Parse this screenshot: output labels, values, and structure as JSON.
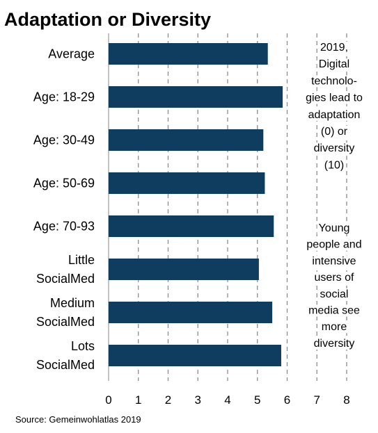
{
  "chart_data": {
    "type": "bar",
    "orientation": "horizontal",
    "title": "Adaptation or Diversity",
    "categories": [
      [
        "Average"
      ],
      [
        "Age: 18-29"
      ],
      [
        "Age: 30-49"
      ],
      [
        "Age: 50-69"
      ],
      [
        "Age: 70-93"
      ],
      [
        "Little",
        "SocialMed"
      ],
      [
        "Medium",
        "SocialMed"
      ],
      [
        "Lots",
        "SocialMed"
      ]
    ],
    "values": [
      5.35,
      5.85,
      5.2,
      5.25,
      5.55,
      5.05,
      5.5,
      5.8
    ],
    "xlim": [
      0,
      8
    ],
    "xticks": [
      "0",
      "1",
      "2",
      "3",
      "4",
      "5",
      "6",
      "7",
      "8"
    ],
    "grid": "vertical dashed",
    "bar_color": "#0e3d5f",
    "annotations": {
      "top": [
        "2019,",
        "Digital",
        "technolo-",
        "gies lead to",
        "adaptation",
        "(0) or",
        "diversity",
        "(10)"
      ],
      "bottom": [
        "Young",
        "people and",
        "intensive",
        "users of",
        "social",
        "media see",
        "more",
        "diversity"
      ]
    },
    "source": "Source: Gemeinwohlatlas 2019"
  }
}
